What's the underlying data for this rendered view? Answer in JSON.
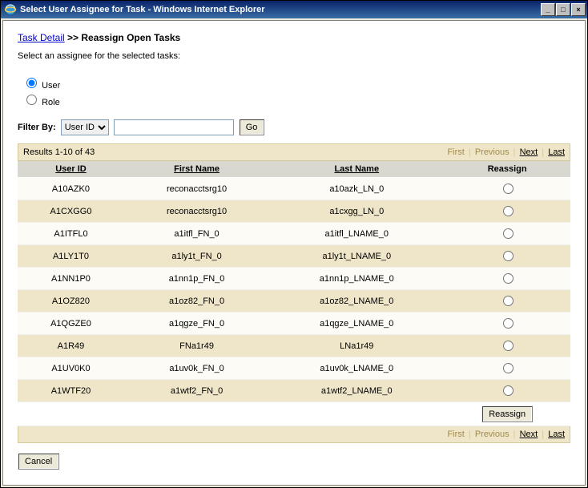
{
  "window": {
    "title": "Select User Assignee for Task - Windows Internet Explorer",
    "min_label": "_",
    "max_label": "□",
    "close_label": "×"
  },
  "breadcrumb": {
    "link": "Task Detail",
    "sep": ">>",
    "current": "Reassign Open Tasks"
  },
  "instruction": "Select an assignee for the selected tasks:",
  "radios": {
    "user": "User",
    "role": "Role",
    "selected": "user"
  },
  "filter": {
    "label": "Filter By:",
    "options": [
      "User ID"
    ],
    "selected": "User ID",
    "go": "Go",
    "value": ""
  },
  "results": {
    "summary": "Results 1-10 of 43",
    "pager": {
      "first": "First",
      "previous": "Previous",
      "next": "Next",
      "last": "Last",
      "first_enabled": false,
      "previous_enabled": false,
      "next_enabled": true,
      "last_enabled": true
    },
    "columns": {
      "user_id": "User ID",
      "first_name": "First Name",
      "last_name": "Last Name",
      "reassign": "Reassign"
    },
    "rows": [
      {
        "user_id": "A10AZK0",
        "first_name": "reconacctsrg10",
        "last_name": "a10azk_LN_0"
      },
      {
        "user_id": "A1CXGG0",
        "first_name": "reconacctsrg10",
        "last_name": "a1cxgg_LN_0"
      },
      {
        "user_id": "A1ITFL0",
        "first_name": "a1itfl_FN_0",
        "last_name": "a1itfl_LNAME_0"
      },
      {
        "user_id": "A1LY1T0",
        "first_name": "a1ly1t_FN_0",
        "last_name": "a1ly1t_LNAME_0"
      },
      {
        "user_id": "A1NN1P0",
        "first_name": "a1nn1p_FN_0",
        "last_name": "a1nn1p_LNAME_0"
      },
      {
        "user_id": "A1OZ820",
        "first_name": "a1oz82_FN_0",
        "last_name": "a1oz82_LNAME_0"
      },
      {
        "user_id": "A1QGZE0",
        "first_name": "a1qgze_FN_0",
        "last_name": "a1qgze_LNAME_0"
      },
      {
        "user_id": "A1R49",
        "first_name": "FNa1r49",
        "last_name": "LNa1r49"
      },
      {
        "user_id": "A1UV0K0",
        "first_name": "a1uv0k_FN_0",
        "last_name": "a1uv0k_LNAME_0"
      },
      {
        "user_id": "A1WTF20",
        "first_name": "a1wtf2_FN_0",
        "last_name": "a1wtf2_LNAME_0"
      }
    ],
    "reassign_button": "Reassign"
  },
  "cancel": "Cancel",
  "colors": {
    "titlebar_start": "#0a246a",
    "titlebar_end": "#3a6ea5",
    "strip_bg": "#efe6c9",
    "header_bg": "#d8d8d0",
    "row_odd": "#fcfbf5",
    "row_even": "#efe6c9",
    "link": "#0000cc",
    "pager_disabled": "#a08b4d"
  }
}
